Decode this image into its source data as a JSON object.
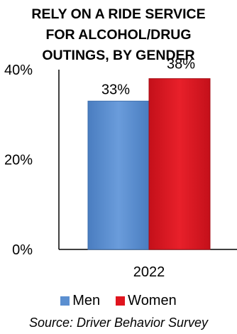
{
  "chart_data": {
    "type": "bar",
    "title_lines": [
      "RELY ON A RIDE SERVICE",
      "FOR ALCOHOL/DRUG",
      "OUTINGS, BY GENDER"
    ],
    "categories": [
      "2022"
    ],
    "series": [
      {
        "name": "Men",
        "values": [
          33
        ],
        "label": "33%",
        "color": "#5B8FD0"
      },
      {
        "name": "Women",
        "values": [
          38
        ],
        "label": "38%",
        "color": "#E0141E"
      }
    ],
    "y_ticks": [
      {
        "value": 0,
        "label": "0%"
      },
      {
        "value": 20,
        "label": "20%"
      },
      {
        "value": 40,
        "label": "40%"
      }
    ],
    "ylim": [
      0,
      40
    ],
    "grid": false,
    "legend_position": "bottom",
    "source": "Source: Driver Behavior Survey"
  }
}
